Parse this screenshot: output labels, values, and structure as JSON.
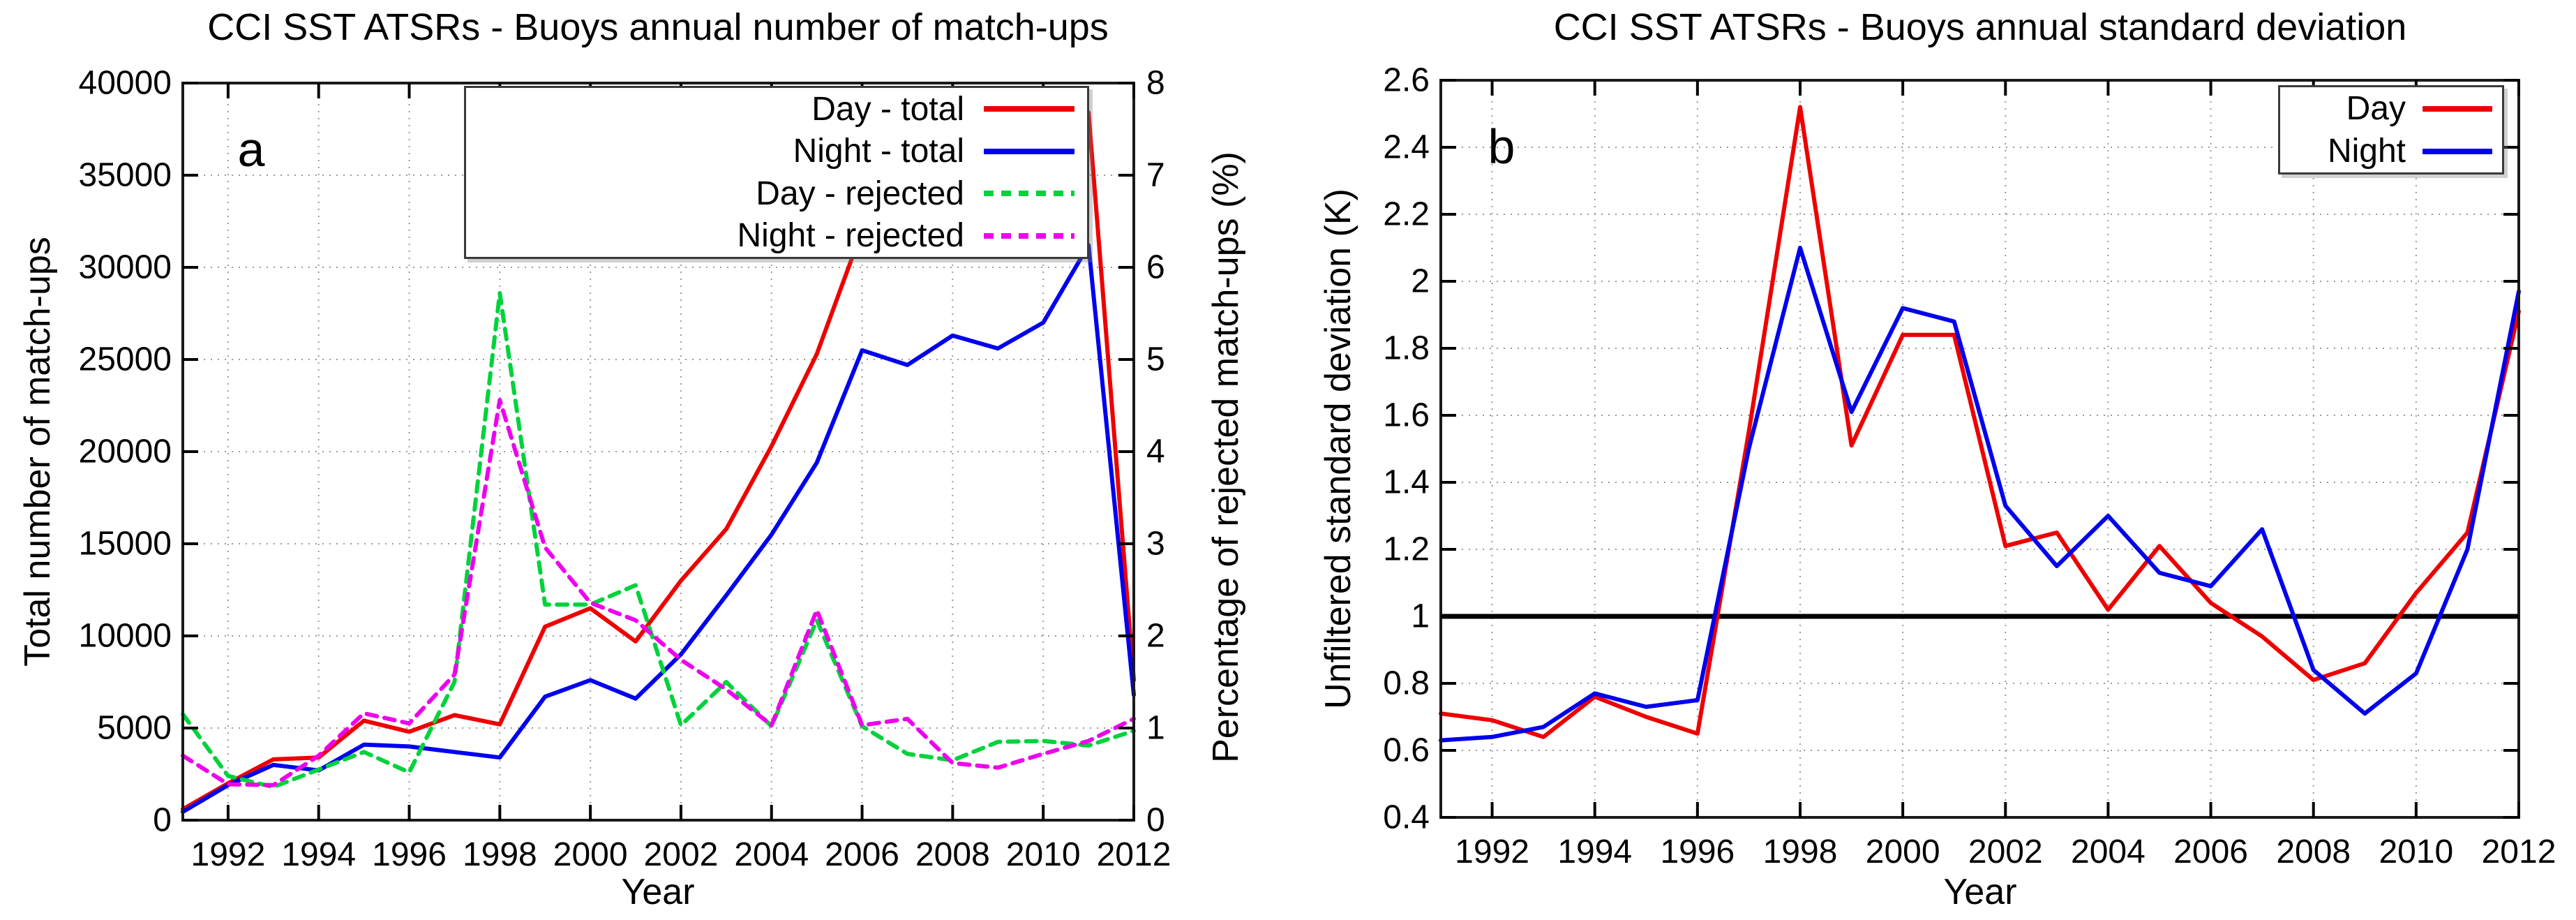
{
  "figure": {
    "background": "#ffffff"
  },
  "chart_data": [
    {
      "id": "matchups",
      "type": "line",
      "panel_label": "a",
      "title": "CCI SST ATSRs - Buoys annual number of match-ups",
      "xlabel": "Year",
      "ylabel": "Total number of match-ups",
      "y2label": "Percentage of rejected match-ups (%)",
      "xlim": [
        1991,
        2012
      ],
      "ylim": [
        0,
        40000
      ],
      "y2lim": [
        0,
        8
      ],
      "grid": "dotted",
      "legend_position": "top-inside-right",
      "x_ticks": [
        1992,
        1994,
        1996,
        1998,
        2000,
        2002,
        2004,
        2006,
        2008,
        2010,
        2012
      ],
      "x_tick_labels": [
        "1992",
        "1994",
        "1996",
        "1998",
        "2000",
        "2002",
        "2004",
        "2006",
        "2008",
        "2010",
        "2012"
      ],
      "y_ticks": [
        0,
        5000,
        10000,
        15000,
        20000,
        25000,
        30000,
        35000,
        40000
      ],
      "y_tick_labels": [
        "0",
        "5000",
        "10000",
        "15000",
        "20000",
        "25000",
        "30000",
        "35000",
        "40000"
      ],
      "y2_ticks": [
        0,
        1,
        2,
        3,
        4,
        5,
        6,
        7,
        8
      ],
      "y2_tick_labels": [
        "0",
        "1",
        "2",
        "3",
        "4",
        "5",
        "6",
        "7",
        "8"
      ],
      "x": [
        1991,
        1992,
        1993,
        1994,
        1995,
        1996,
        1997,
        1998,
        1999,
        2000,
        2001,
        2002,
        2003,
        2004,
        2005,
        2006,
        2007,
        2008,
        2009,
        2010,
        2011,
        2012
      ],
      "series": [
        {
          "name": "Day - total",
          "color": "#ee0000",
          "style": "solid",
          "axis": "y1",
          "values": [
            600,
            2000,
            3300,
            3400,
            5400,
            4800,
            5700,
            5200,
            10500,
            11500,
            9700,
            13000,
            15800,
            20300,
            25300,
            32000,
            31200,
            32800,
            31500,
            33700,
            38400,
            7600
          ]
        },
        {
          "name": "Night - total",
          "color": "#0000ee",
          "style": "solid",
          "axis": "y1",
          "values": [
            450,
            1900,
            3000,
            2700,
            4100,
            4000,
            3700,
            3400,
            6700,
            7600,
            6600,
            9000,
            12200,
            15500,
            19400,
            25500,
            24700,
            26300,
            25600,
            27000,
            31200,
            6800
          ]
        },
        {
          "name": "Day - rejected",
          "color": "#00d23c",
          "style": "dashed",
          "axis": "y2",
          "values": [
            1.15,
            0.48,
            0.36,
            0.55,
            0.74,
            0.52,
            1.5,
            5.72,
            2.34,
            2.34,
            2.55,
            1.03,
            1.5,
            1.02,
            2.17,
            1.02,
            0.72,
            0.65,
            0.85,
            0.86,
            0.81,
            0.97
          ]
        },
        {
          "name": "Night - rejected",
          "color": "#ee00ee",
          "style": "dashed",
          "axis": "y2",
          "values": [
            0.7,
            0.39,
            0.38,
            0.7,
            1.16,
            1.05,
            1.58,
            4.56,
            2.96,
            2.36,
            2.17,
            1.74,
            1.42,
            1.03,
            2.28,
            1.03,
            1.1,
            0.62,
            0.57,
            0.72,
            0.86,
            1.1
          ]
        }
      ]
    },
    {
      "id": "stddev",
      "type": "line",
      "panel_label": "b",
      "title": "CCI SST ATSRs - Buoys annual standard deviation",
      "xlabel": "Year",
      "ylabel": "Unfiltered standard deviation (K)",
      "xlim": [
        1991,
        2012
      ],
      "ylim": [
        0.4,
        2.6
      ],
      "grid": "dotted",
      "legend_position": "top-inside-right",
      "reference_line_y": 1.0,
      "reference_line_color": "#000000",
      "x_ticks": [
        1992,
        1994,
        1996,
        1998,
        2000,
        2002,
        2004,
        2006,
        2008,
        2010,
        2012
      ],
      "x_tick_labels": [
        "1992",
        "1994",
        "1996",
        "1998",
        "2000",
        "2002",
        "2004",
        "2006",
        "2008",
        "2010",
        "2012"
      ],
      "y_ticks": [
        0.4,
        0.6,
        0.8,
        1.0,
        1.2,
        1.4,
        1.6,
        1.8,
        2.0,
        2.2,
        2.4,
        2.6
      ],
      "y_tick_labels": [
        "0.4",
        "0.6",
        "0.8",
        "1",
        "1.2",
        "1.4",
        "1.6",
        "1.8",
        "2",
        "2.2",
        "2.4",
        "2.6"
      ],
      "x": [
        1991,
        1992,
        1993,
        1994,
        1995,
        1996,
        1997,
        1998,
        1999,
        2000,
        2001,
        2002,
        2003,
        2004,
        2005,
        2006,
        2007,
        2008,
        2009,
        2010,
        2011,
        2012
      ],
      "series": [
        {
          "name": "Day",
          "color": "#ee0000",
          "style": "solid",
          "axis": "y1",
          "values": [
            0.71,
            0.69,
            0.64,
            0.76,
            0.7,
            0.65,
            1.55,
            2.52,
            1.51,
            1.84,
            1.84,
            1.21,
            1.25,
            1.02,
            1.21,
            1.04,
            0.94,
            0.81,
            0.86,
            1.07,
            1.25,
            1.91
          ]
        },
        {
          "name": "Night",
          "color": "#0000ee",
          "style": "solid",
          "axis": "y1",
          "values": [
            0.63,
            0.64,
            0.67,
            0.77,
            0.73,
            0.75,
            1.5,
            2.1,
            1.61,
            1.92,
            1.88,
            1.33,
            1.15,
            1.3,
            1.13,
            1.09,
            1.26,
            0.84,
            0.71,
            0.83,
            1.2,
            1.97
          ]
        }
      ]
    }
  ]
}
